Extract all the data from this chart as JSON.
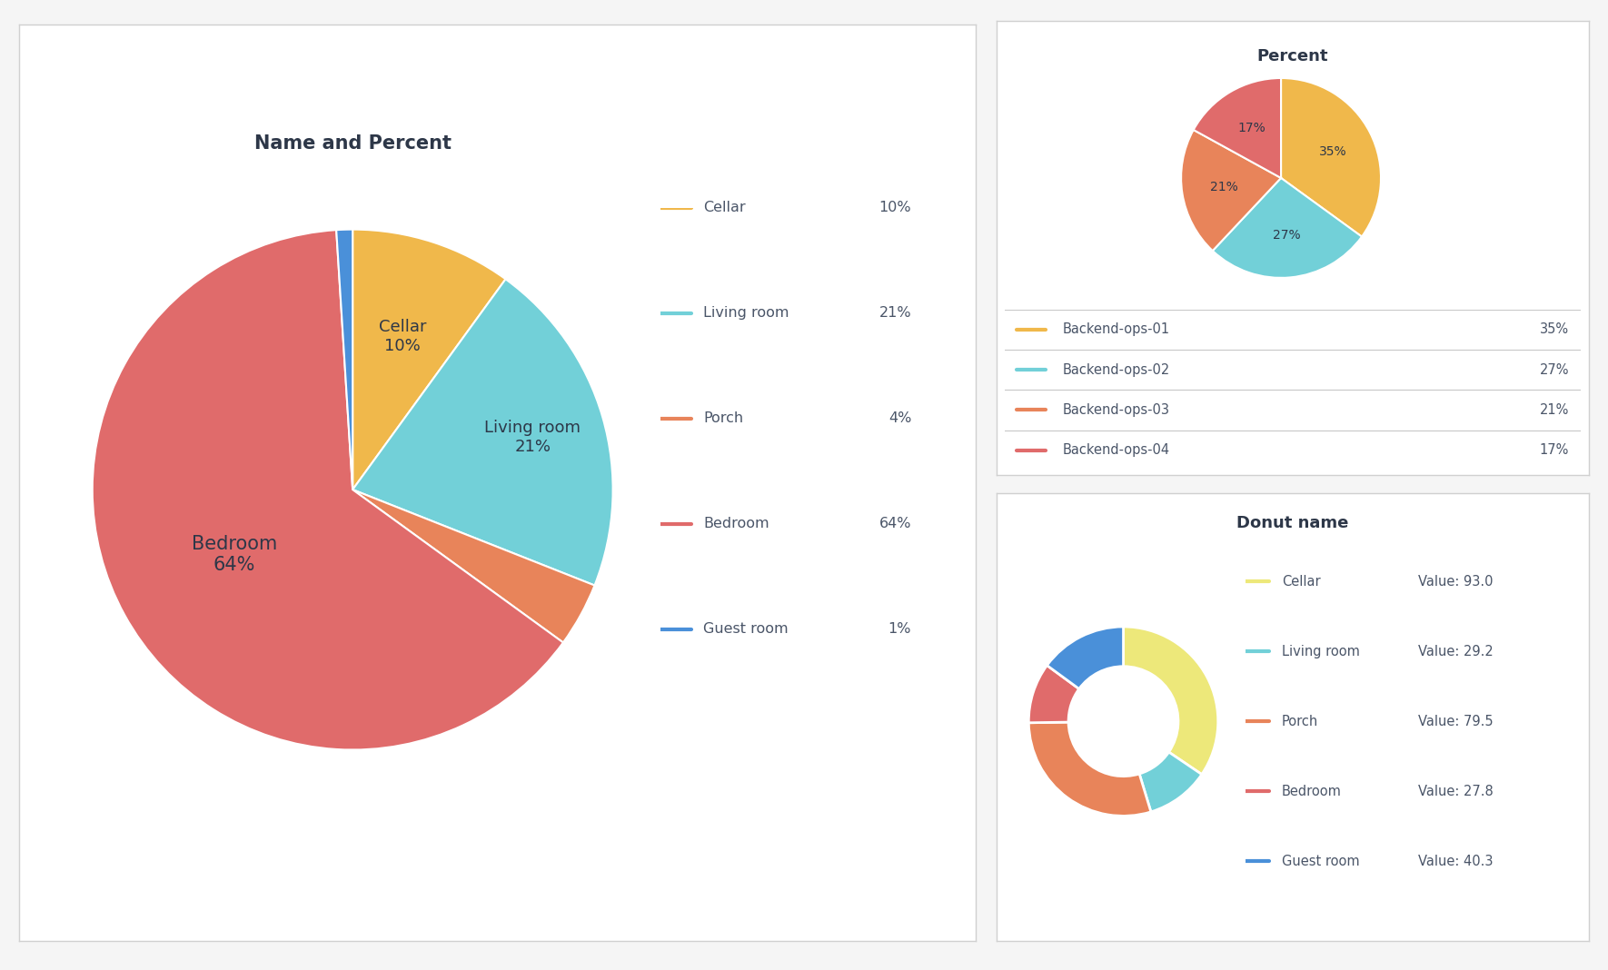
{
  "chart1": {
    "title": "Name and Percent",
    "labels": [
      "Cellar",
      "Living room",
      "Porch",
      "Bedroom",
      "Guest room"
    ],
    "values": [
      10,
      21,
      4,
      64,
      1
    ],
    "colors": [
      "#F0B84B",
      "#72D0D8",
      "#E8845A",
      "#E06B6B",
      "#4A90D9"
    ],
    "legend_labels": [
      "Cellar",
      "Living room",
      "Porch",
      "Bedroom",
      "Guest room"
    ],
    "legend_values": [
      "10%",
      "21%",
      "4%",
      "64%",
      "1%"
    ],
    "inner_labels": [
      "Cellar",
      "Living room",
      "",
      "Bedroom",
      ""
    ],
    "inner_pcts": [
      "10%",
      "21%",
      "",
      "64%",
      ""
    ]
  },
  "chart2": {
    "title": "Percent",
    "labels": [
      "Backend-ops-01",
      "Backend-ops-02",
      "Backend-ops-03",
      "Backend-ops-04"
    ],
    "values": [
      35,
      27,
      21,
      17
    ],
    "colors": [
      "#F0B84B",
      "#72D0D8",
      "#E8845A",
      "#E06B6B"
    ],
    "autopct_labels": [
      "35%",
      "27%",
      "21%",
      "17%"
    ],
    "legend_values": [
      "35%",
      "27%",
      "21%",
      "17%"
    ]
  },
  "chart3": {
    "title": "Donut name",
    "labels": [
      "Cellar",
      "Living room",
      "Porch",
      "Bedroom",
      "Guest room"
    ],
    "values": [
      93.0,
      29.2,
      79.5,
      27.8,
      40.3
    ],
    "colors": [
      "#EDE87A",
      "#72D0D8",
      "#E8845A",
      "#E06B6B",
      "#4A90D9"
    ],
    "legend_values": [
      "Value: 93.0",
      "Value: 29.2",
      "Value: 79.5",
      "Value: 27.8",
      "Value: 40.3"
    ]
  },
  "bg_color": "#f5f5f5",
  "panel_bg": "#ffffff",
  "border_color": "#d0d0d0",
  "title_color": "#2d3748",
  "legend_text_color": "#4a5568"
}
